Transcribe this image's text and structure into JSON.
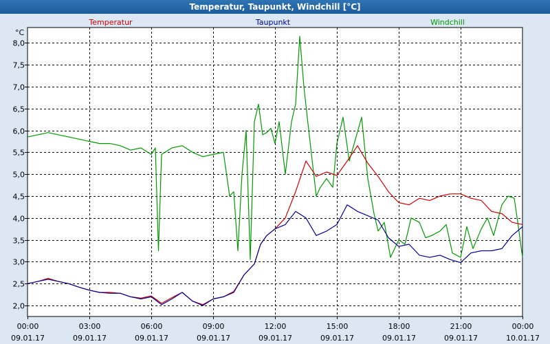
{
  "window": {
    "title": "Temperatur, Taupunkt, Windchill [°C]"
  },
  "chart_data": {
    "type": "line",
    "title": "Temperatur, Taupunkt, Windchill [°C]",
    "unit_label": "°C",
    "ylim": [
      1.75,
      8.35
    ],
    "y_ticks": [
      "2,0",
      "2,5",
      "3,0",
      "3,5",
      "4,0",
      "4,5",
      "5,0",
      "5,5",
      "6,0",
      "6,5",
      "7,0",
      "7,5",
      "8,0"
    ],
    "y_tick_values": [
      2.0,
      2.5,
      3.0,
      3.5,
      4.0,
      4.5,
      5.0,
      5.5,
      6.0,
      6.5,
      7.0,
      7.5,
      8.0
    ],
    "xlim_hours": [
      0,
      24
    ],
    "x_ticks": [
      {
        "time": "00:00",
        "date": "09.01.17",
        "hour": 0
      },
      {
        "time": "03:00",
        "date": "09.01.17",
        "hour": 3
      },
      {
        "time": "06:00",
        "date": "09.01.17",
        "hour": 6
      },
      {
        "time": "09:00",
        "date": "09.01.17",
        "hour": 9
      },
      {
        "time": "12:00",
        "date": "09.01.17",
        "hour": 12
      },
      {
        "time": "15:00",
        "date": "09.01.17",
        "hour": 15
      },
      {
        "time": "18:00",
        "date": "09.01.17",
        "hour": 18
      },
      {
        "time": "21:00",
        "date": "09.01.17",
        "hour": 21
      },
      {
        "time": "00:00",
        "date": "10.01.17",
        "hour": 24
      }
    ],
    "grid": true,
    "legend_placement": "top",
    "series": [
      {
        "name": "Temperatur",
        "color": "#cc0000",
        "x": [
          0,
          0.5,
          1,
          1.5,
          2,
          2.5,
          3,
          3.5,
          4,
          4.5,
          5,
          5.5,
          6,
          6.5,
          7,
          7.5,
          8,
          8.5,
          9,
          9.5,
          10,
          10.5,
          11,
          11.3,
          11.6,
          12,
          12.5,
          13,
          13.5,
          14,
          14.5,
          15,
          15.5,
          16,
          16.5,
          17,
          17.5,
          18,
          18.5,
          19,
          19.5,
          20,
          20.5,
          21,
          21.5,
          22,
          22.5,
          23,
          23.5,
          24
        ],
        "y": [
          2.5,
          2.55,
          2.62,
          2.55,
          2.5,
          2.42,
          2.35,
          2.3,
          2.3,
          2.28,
          2.2,
          2.17,
          2.22,
          2.05,
          2.18,
          2.3,
          2.1,
          2.02,
          2.15,
          2.2,
          2.32,
          2.7,
          2.95,
          3.4,
          3.6,
          3.75,
          4.0,
          4.6,
          5.3,
          4.95,
          5.05,
          4.97,
          5.3,
          5.65,
          5.25,
          4.95,
          4.6,
          4.35,
          4.3,
          4.45,
          4.4,
          4.5,
          4.55,
          4.55,
          4.45,
          4.4,
          4.15,
          4.1,
          3.9,
          3.85
        ]
      },
      {
        "name": "Taupunkt",
        "color": "#000099",
        "x": [
          0,
          0.5,
          1,
          1.5,
          2,
          2.5,
          3,
          3.5,
          4,
          4.5,
          5,
          5.5,
          6,
          6.5,
          7,
          7.5,
          8,
          8.5,
          9,
          9.5,
          10,
          10.5,
          11,
          11.3,
          11.6,
          12,
          12.5,
          13,
          13.5,
          14,
          14.5,
          15,
          15.5,
          16,
          16.5,
          17,
          17.5,
          18,
          18.5,
          19,
          19.5,
          20,
          20.5,
          21,
          21.5,
          22,
          22.5,
          23,
          23.5,
          24
        ],
        "y": [
          2.5,
          2.55,
          2.6,
          2.55,
          2.5,
          2.42,
          2.35,
          2.3,
          2.28,
          2.28,
          2.2,
          2.15,
          2.2,
          2.02,
          2.15,
          2.3,
          2.1,
          2.0,
          2.15,
          2.2,
          2.3,
          2.7,
          2.95,
          3.4,
          3.6,
          3.75,
          3.85,
          4.15,
          4.0,
          3.6,
          3.7,
          3.85,
          4.3,
          4.15,
          4.05,
          3.95,
          3.55,
          3.35,
          3.4,
          3.15,
          3.1,
          3.15,
          3.05,
          2.98,
          3.2,
          3.25,
          3.25,
          3.3,
          3.6,
          3.8
        ]
      },
      {
        "name": "Windchill",
        "color": "#009900",
        "x": [
          0,
          0.5,
          1,
          1.5,
          2,
          2.5,
          3,
          3.5,
          4,
          4.5,
          5,
          5.5,
          6,
          6.2,
          6.35,
          6.5,
          7,
          7.5,
          8,
          8.5,
          9,
          9.5,
          9.8,
          10,
          10.2,
          10.4,
          10.6,
          10.8,
          11,
          11.2,
          11.4,
          11.6,
          11.8,
          12,
          12.2,
          12.5,
          12.8,
          13,
          13.2,
          13.4,
          13.6,
          14,
          14.2,
          14.5,
          14.8,
          15,
          15.3,
          15.6,
          15.9,
          16.2,
          16.5,
          16.8,
          17,
          17.3,
          17.6,
          18,
          18.3,
          18.6,
          19,
          19.3,
          19.6,
          20,
          20.3,
          20.6,
          21,
          21.3,
          21.6,
          22,
          22.3,
          22.6,
          23,
          23.3,
          23.6,
          23.8,
          24
        ],
        "y": [
          5.85,
          5.9,
          5.95,
          5.9,
          5.85,
          5.8,
          5.75,
          5.7,
          5.7,
          5.65,
          5.55,
          5.6,
          5.45,
          5.6,
          3.25,
          5.45,
          5.6,
          5.65,
          5.5,
          5.4,
          5.45,
          5.5,
          4.5,
          4.6,
          3.25,
          5.0,
          6.0,
          3.05,
          6.2,
          6.6,
          5.9,
          5.95,
          6.05,
          5.7,
          6.2,
          5.0,
          6.2,
          6.6,
          8.15,
          7.0,
          6.15,
          4.5,
          4.7,
          4.9,
          4.7,
          5.7,
          6.3,
          5.3,
          5.8,
          6.3,
          4.9,
          4.1,
          3.7,
          3.9,
          3.1,
          3.5,
          3.4,
          4.0,
          3.9,
          3.55,
          3.6,
          3.7,
          3.85,
          3.2,
          3.1,
          3.8,
          3.3,
          3.75,
          4.0,
          3.6,
          4.3,
          4.5,
          4.45,
          3.8,
          3.1
        ]
      }
    ]
  }
}
